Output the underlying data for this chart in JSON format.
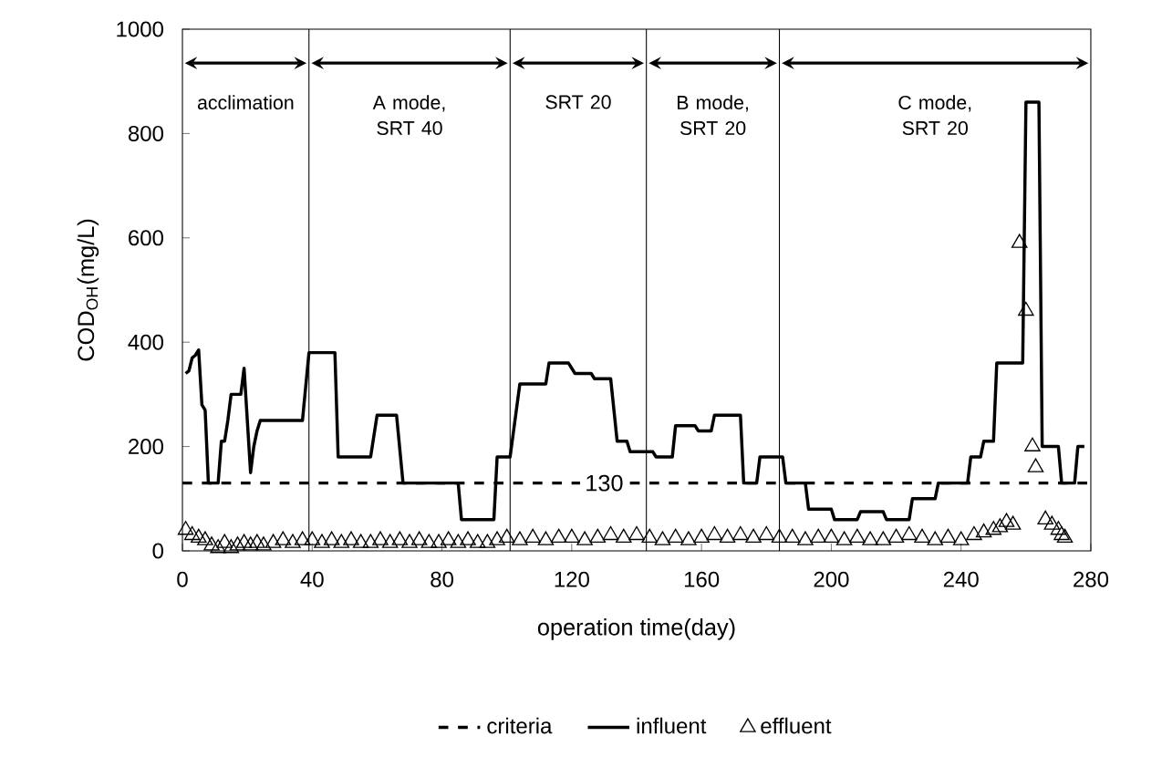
{
  "chart_data": {
    "type": "line",
    "xlabel": "operation time(day)",
    "ylabel": "COD$_{OH}$(mg/L)",
    "xlim": [
      0,
      280
    ],
    "xticks": [
      0,
      40,
      80,
      120,
      160,
      200,
      240,
      280
    ],
    "ylim": [
      0,
      1000
    ],
    "yticks": [
      0,
      200,
      400,
      600,
      800,
      1000
    ],
    "grid": false,
    "legend": "bottom",
    "series": [
      {
        "name": "criteria",
        "type": "line",
        "color": "#000000",
        "line_style": "dashed",
        "marker": "none",
        "x": [
          0,
          280
        ],
        "values": [
          130,
          130
        ]
      },
      {
        "name": "influent",
        "color": "#000000",
        "line_style": "solid",
        "marker": "none",
        "x": [
          1,
          2,
          3,
          4,
          5,
          6,
          7,
          8,
          11,
          12,
          13,
          14,
          15,
          18,
          19,
          20,
          21,
          22,
          23,
          24,
          37,
          39,
          47,
          48,
          58,
          60,
          66,
          68,
          85,
          86,
          96,
          97,
          101,
          104,
          112,
          113,
          119,
          121,
          126,
          127,
          132,
          134,
          137,
          138,
          145,
          146,
          151,
          152,
          158,
          159,
          163,
          164,
          172,
          173,
          177,
          178,
          185,
          186,
          192,
          193,
          200,
          201,
          208,
          209,
          216,
          217,
          224,
          225,
          232,
          233,
          242,
          243,
          246,
          247,
          250,
          251,
          259,
          260,
          264,
          265,
          270,
          271,
          275,
          276,
          278
        ],
        "values": [
          340,
          345,
          370,
          375,
          385,
          280,
          270,
          130,
          130,
          210,
          210,
          250,
          300,
          300,
          350,
          250,
          150,
          200,
          230,
          250,
          250,
          380,
          380,
          180,
          180,
          260,
          260,
          130,
          130,
          60,
          60,
          180,
          180,
          320,
          320,
          360,
          360,
          340,
          340,
          330,
          330,
          210,
          210,
          190,
          190,
          180,
          180,
          240,
          240,
          230,
          230,
          260,
          260,
          130,
          130,
          180,
          180,
          130,
          130,
          80,
          80,
          60,
          60,
          75,
          75,
          60,
          60,
          100,
          100,
          130,
          130,
          180,
          180,
          210,
          210,
          360,
          360,
          860,
          860,
          200,
          200,
          130,
          130,
          200,
          200
        ]
      },
      {
        "name": "effluent",
        "type": "scatter",
        "color": "#000000",
        "marker": "triangle",
        "x": [
          1,
          3,
          5,
          7,
          9,
          11,
          13,
          15,
          17,
          19,
          21,
          23,
          25,
          28,
          31,
          34,
          37,
          40,
          43,
          46,
          49,
          52,
          55,
          58,
          61,
          64,
          67,
          70,
          73,
          76,
          79,
          82,
          85,
          88,
          91,
          94,
          97,
          100,
          104,
          108,
          112,
          116,
          120,
          124,
          128,
          132,
          136,
          140,
          144,
          148,
          152,
          156,
          160,
          164,
          168,
          172,
          176,
          180,
          184,
          188,
          192,
          196,
          200,
          204,
          208,
          212,
          216,
          220,
          224,
          228,
          232,
          236,
          240,
          244,
          247,
          250,
          252,
          254,
          256,
          258,
          260,
          262,
          263,
          266,
          268,
          270,
          271,
          272
        ],
        "values": [
          40,
          30,
          25,
          20,
          10,
          5,
          15,
          5,
          10,
          15,
          10,
          15,
          10,
          15,
          20,
          15,
          20,
          20,
          15,
          20,
          15,
          20,
          15,
          15,
          20,
          15,
          20,
          15,
          20,
          15,
          15,
          20,
          15,
          20,
          15,
          15,
          20,
          25,
          20,
          25,
          20,
          25,
          25,
          20,
          25,
          30,
          25,
          30,
          25,
          20,
          25,
          20,
          25,
          30,
          25,
          30,
          25,
          30,
          25,
          25,
          20,
          25,
          25,
          20,
          25,
          20,
          20,
          25,
          30,
          25,
          20,
          25,
          20,
          30,
          35,
          40,
          45,
          55,
          50,
          590,
          460,
          200,
          160,
          60,
          50,
          40,
          30,
          25
        ]
      }
    ],
    "ref_lines": [
      {
        "axis": "x",
        "value": 39
      },
      {
        "axis": "x",
        "value": 101
      },
      {
        "axis": "x",
        "value": 143
      },
      {
        "axis": "x",
        "value": 184
      }
    ],
    "annotations": [
      "acclimation",
      "A mode, SRT 40",
      "SRT 20",
      "B mode, SRT 20",
      "C mode, SRT 20",
      {
        "text": "130",
        "x": 130,
        "y": 130
      }
    ]
  }
}
